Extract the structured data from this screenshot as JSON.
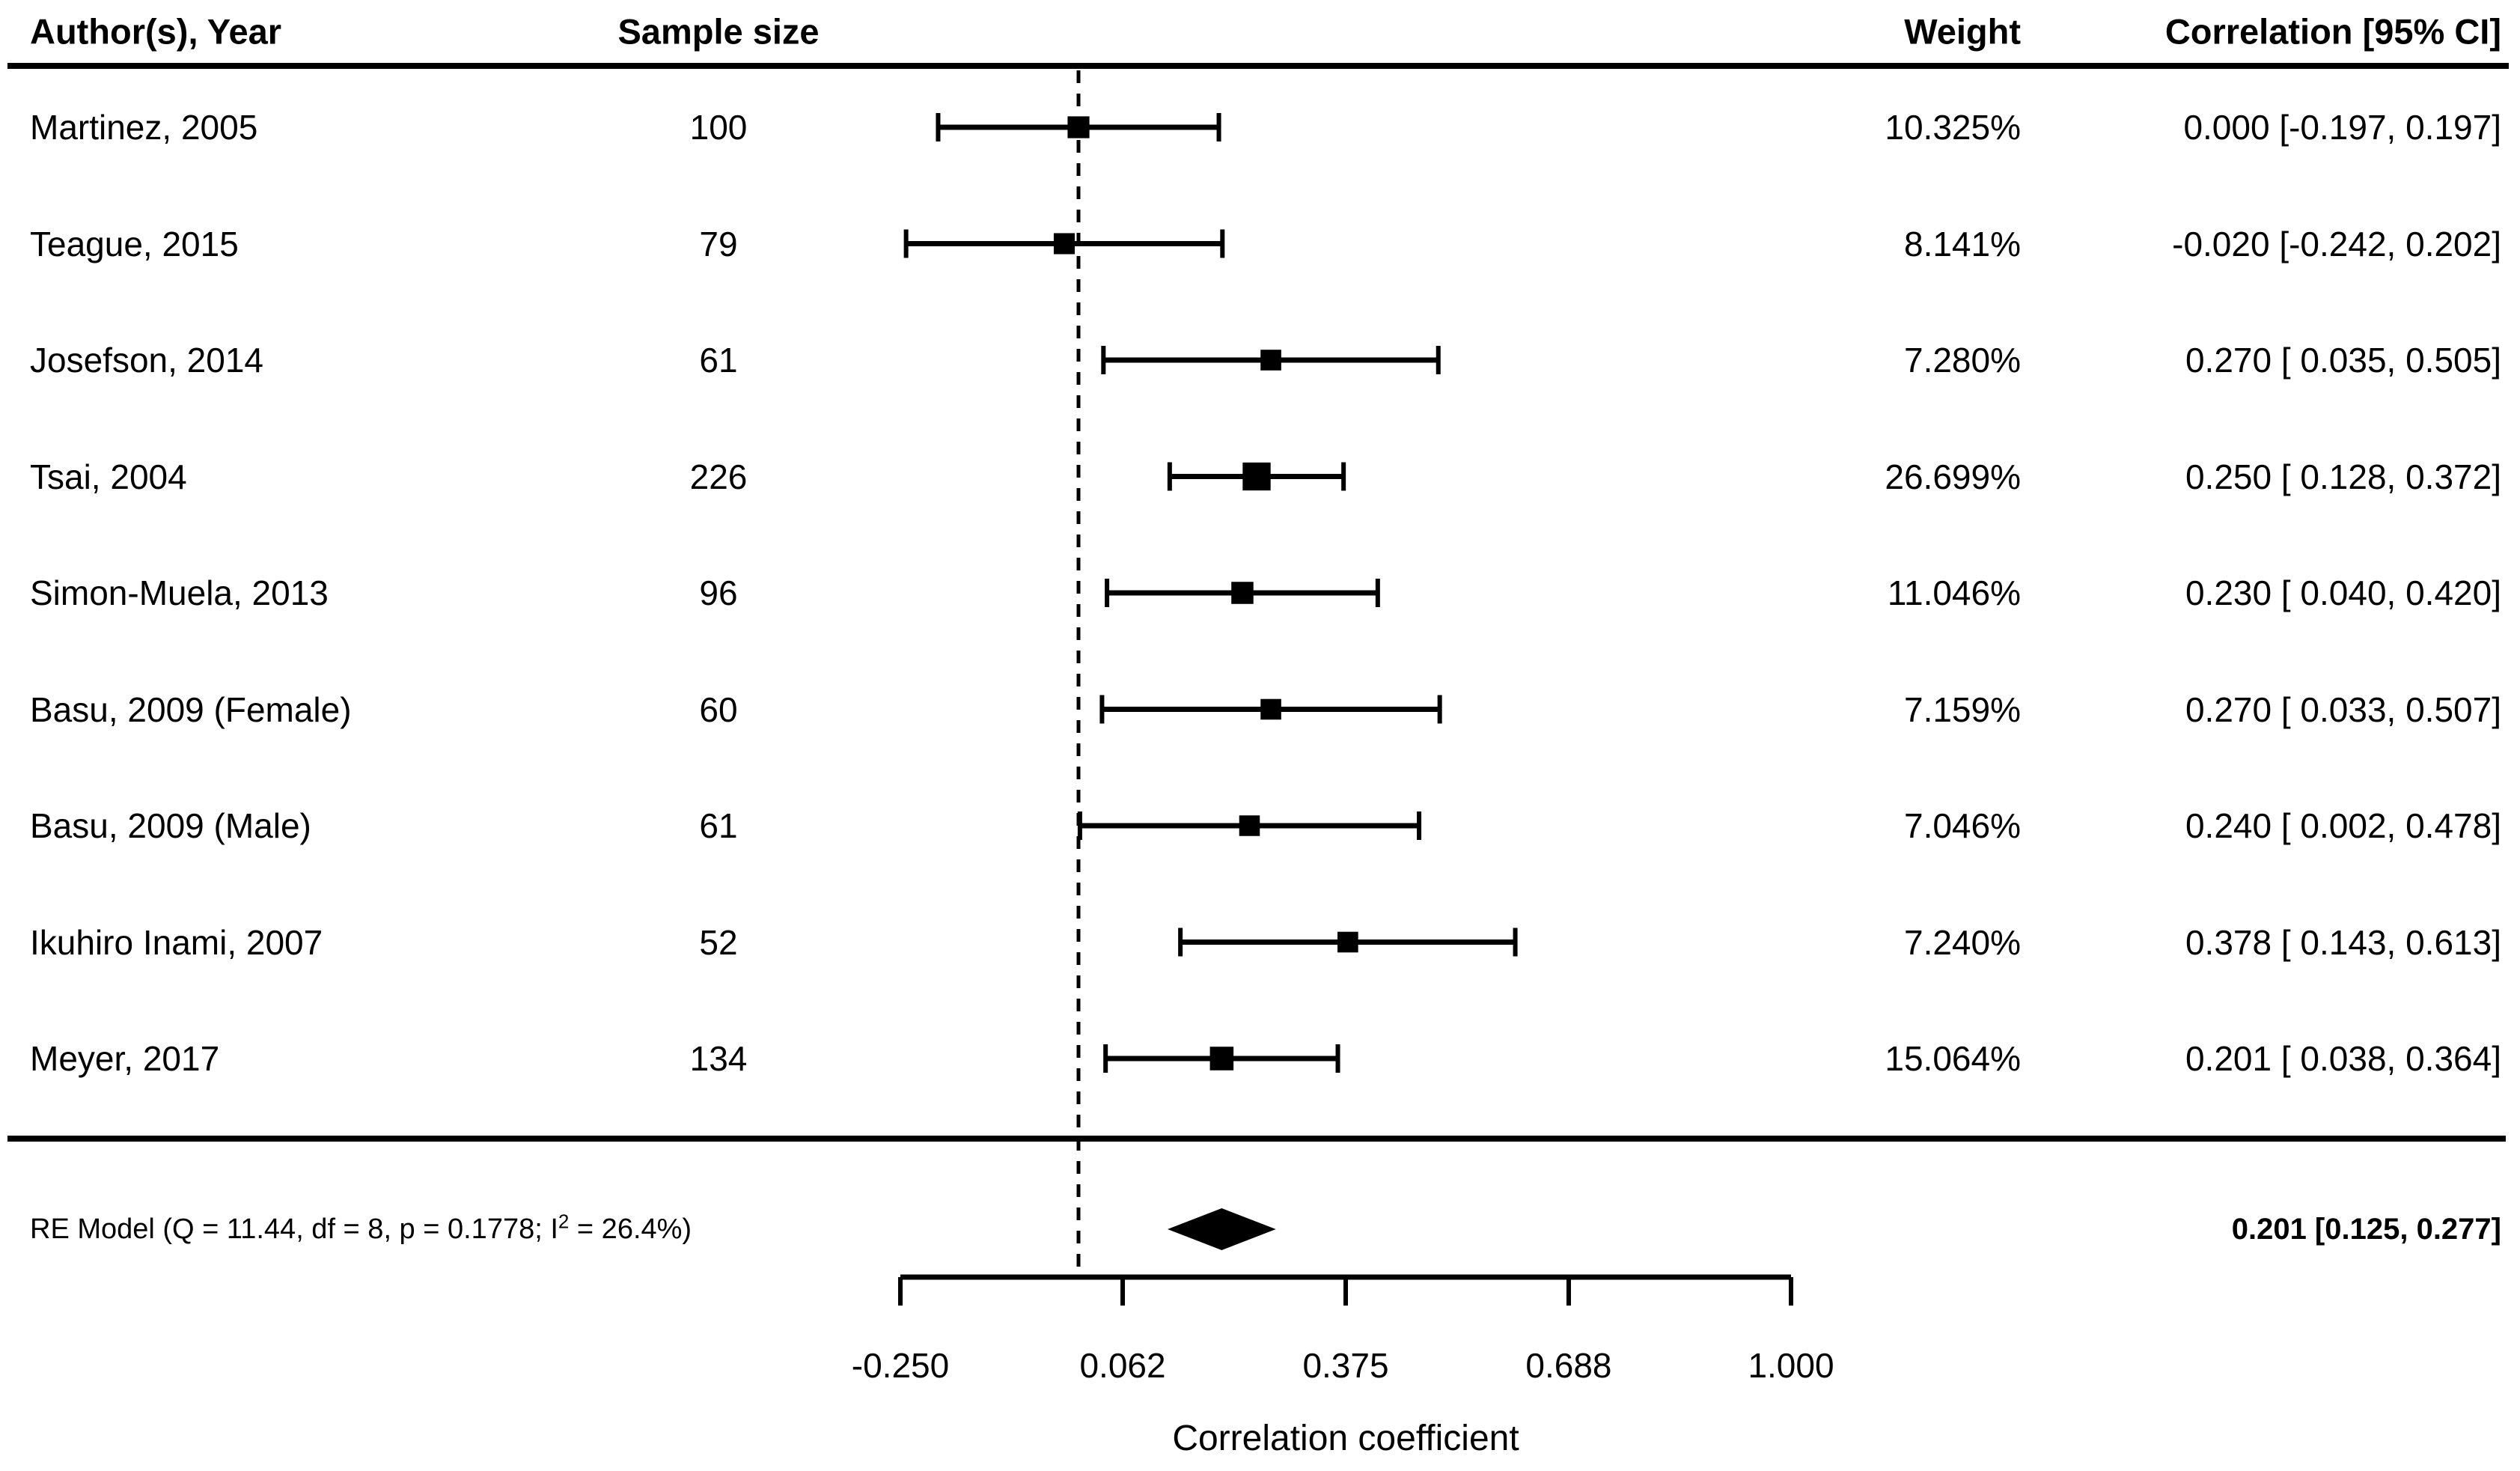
{
  "figure": {
    "background": "#ffffff",
    "foreground": "#000000"
  },
  "table": {
    "headers": {
      "author": "Author(s), Year",
      "sample_size": "Sample size",
      "weight": "Weight",
      "correlation": "Correlation [95% CI]"
    }
  },
  "chart_data": {
    "type": "forest",
    "xlabel": "Correlation coefficient",
    "xlim": [
      -0.25,
      1.0
    ],
    "x_ticks": [
      -0.25,
      0.062,
      0.375,
      0.688,
      1.0
    ],
    "x_tick_labels": [
      "-0.250",
      "0.062",
      "0.375",
      "0.688",
      "1.000"
    ],
    "reference_line_x": 0,
    "grid": false,
    "studies": [
      {
        "author": "Martinez, 2005",
        "sample_size": "100",
        "weight": 10.325,
        "weight_label": "10.325%",
        "estimate": 0.0,
        "ci_lower": -0.197,
        "ci_upper": 0.197,
        "correlation_label": "0.000 [-0.197, 0.197]"
      },
      {
        "author": "Teague, 2015",
        "sample_size": "79",
        "weight": 8.141,
        "weight_label": "8.141%",
        "estimate": -0.02,
        "ci_lower": -0.242,
        "ci_upper": 0.202,
        "correlation_label": "-0.020 [-0.242, 0.202]"
      },
      {
        "author": "Josefson, 2014",
        "sample_size": "61",
        "weight": 7.28,
        "weight_label": "7.280%",
        "estimate": 0.27,
        "ci_lower": 0.035,
        "ci_upper": 0.505,
        "correlation_label": "0.270 [ 0.035, 0.505]"
      },
      {
        "author": "Tsai, 2004",
        "sample_size": "226",
        "weight": 26.699,
        "weight_label": "26.699%",
        "estimate": 0.25,
        "ci_lower": 0.128,
        "ci_upper": 0.372,
        "correlation_label": "0.250 [ 0.128, 0.372]"
      },
      {
        "author": "Simon-Muela, 2013",
        "sample_size": "96",
        "weight": 11.046,
        "weight_label": "11.046%",
        "estimate": 0.23,
        "ci_lower": 0.04,
        "ci_upper": 0.42,
        "correlation_label": "0.230 [ 0.040, 0.420]"
      },
      {
        "author": "Basu, 2009 (Female)",
        "sample_size": "60",
        "weight": 7.159,
        "weight_label": "7.159%",
        "estimate": 0.27,
        "ci_lower": 0.033,
        "ci_upper": 0.507,
        "correlation_label": "0.270 [ 0.033, 0.507]"
      },
      {
        "author": "Basu, 2009 (Male)",
        "sample_size": "61",
        "weight": 7.046,
        "weight_label": "7.046%",
        "estimate": 0.24,
        "ci_lower": 0.002,
        "ci_upper": 0.478,
        "correlation_label": "0.240 [ 0.002, 0.478]"
      },
      {
        "author": "Ikuhiro Inami, 2007",
        "sample_size": "52",
        "weight": 7.24,
        "weight_label": "7.240%",
        "estimate": 0.378,
        "ci_lower": 0.143,
        "ci_upper": 0.613,
        "correlation_label": "0.378 [ 0.143, 0.613]"
      },
      {
        "author": "Meyer, 2017",
        "sample_size": "134",
        "weight": 15.064,
        "weight_label": "15.064%",
        "estimate": 0.201,
        "ci_lower": 0.038,
        "ci_upper": 0.364,
        "correlation_label": "0.201 [ 0.038, 0.364]"
      }
    ],
    "summary": {
      "model_label_prefix": "RE Model (Q = 11.44, df = 8, p = 0.1778; I",
      "model_label_sup": "2",
      "model_label_suffix": " = 26.4%)",
      "estimate": 0.201,
      "ci_lower": 0.125,
      "ci_upper": 0.277,
      "correlation_label": "0.201 [0.125, 0.277]"
    }
  }
}
